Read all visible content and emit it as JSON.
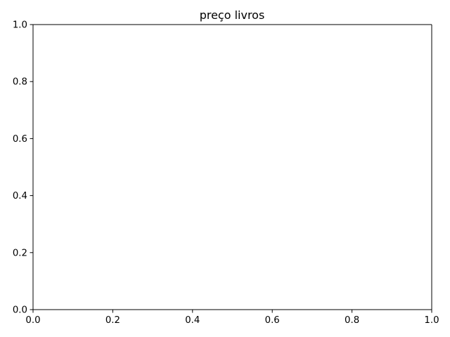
{
  "chart_data": {
    "type": "line",
    "title": "preço livros",
    "xlabel": "",
    "ylabel": "",
    "xlim": [
      0,
      1
    ],
    "ylim": [
      0,
      1
    ],
    "x_ticks": [
      0.0,
      0.2,
      0.4,
      0.6,
      0.8,
      1.0
    ],
    "x_tick_labels": [
      "0.0",
      "0.2",
      "0.4",
      "0.6",
      "0.8",
      "1.0"
    ],
    "y_ticks": [
      0.0,
      0.2,
      0.4,
      0.6,
      0.8,
      1.0
    ],
    "y_tick_labels": [
      "0.0",
      "0.2",
      "0.4",
      "0.6",
      "0.8",
      "1.0"
    ],
    "series": [],
    "grid": false
  },
  "colors": {
    "axes": "#000000",
    "background": "#ffffff"
  }
}
